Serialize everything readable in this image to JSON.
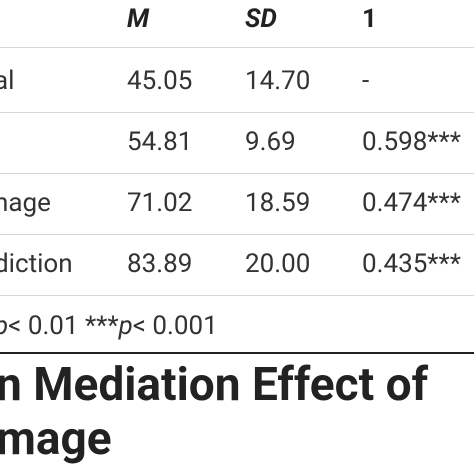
{
  "table": {
    "header": [
      "M",
      "SD",
      "1"
    ],
    "rows": [
      [
        "al",
        "45.05",
        "14.70",
        "-"
      ],
      [
        "",
        "54.81",
        "9.69",
        "0.598***"
      ],
      [
        "nage",
        "71.02",
        "18.59",
        "0.474***"
      ],
      [
        "diction",
        "83.89",
        "20.00",
        "0.435***"
      ]
    ],
    "footnote": [
      "p",
      "< 0.01  ***",
      "p",
      "< 0.001"
    ]
  },
  "heading": [
    "n Mediation Effect of",
    "mage"
  ]
}
